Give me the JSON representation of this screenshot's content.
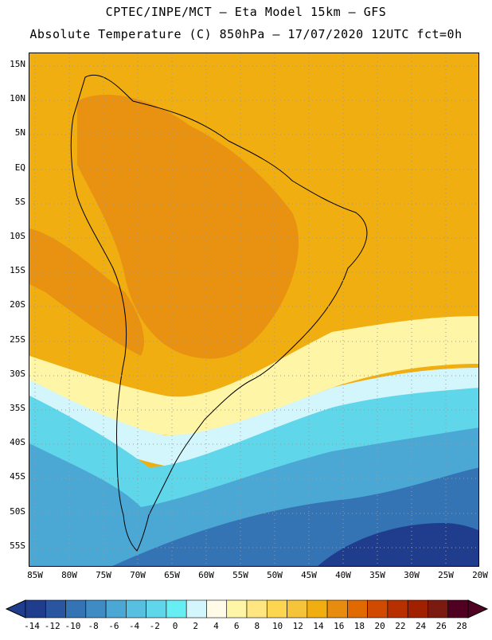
{
  "header": {
    "line1": "CPTEC/INPE/MCT –  Eta Model 15km – GFS",
    "line2": "Absolute Temperature (C) 850hPa – 17/07/2020 12UTC fct=0h"
  },
  "map": {
    "lat_labels": [
      "15N",
      "10N",
      "5N",
      "EQ",
      "5S",
      "10S",
      "15S",
      "20S",
      "25S",
      "30S",
      "35S",
      "40S",
      "45S",
      "50S",
      "55S"
    ],
    "lon_labels": [
      "85W",
      "80W",
      "75W",
      "70W",
      "65W",
      "60W",
      "55W",
      "50W",
      "45W",
      "40W",
      "35W",
      "30W",
      "25W",
      "20W"
    ]
  },
  "colorbar": {
    "labels": [
      "-14",
      "-12",
      "-10",
      "-8",
      "-6",
      "-4",
      "-2",
      "0",
      "2",
      "4",
      "6",
      "8",
      "10",
      "12",
      "14",
      "16",
      "18",
      "20",
      "22",
      "24",
      "26",
      "28"
    ],
    "colors": [
      "#1f3d8c",
      "#2a55a0",
      "#3473b4",
      "#3f8cc4",
      "#4ba7d4",
      "#57bfe0",
      "#5fd6ea",
      "#66eef2",
      "#d2f6fb",
      "#fffbe8",
      "#fff5a6",
      "#ffe680",
      "#fcd650",
      "#f6c43a",
      "#f0ae10",
      "#e88c10",
      "#e06a00",
      "#d04a00",
      "#b83000",
      "#a02000",
      "#7a1a10",
      "#500020"
    ]
  }
}
